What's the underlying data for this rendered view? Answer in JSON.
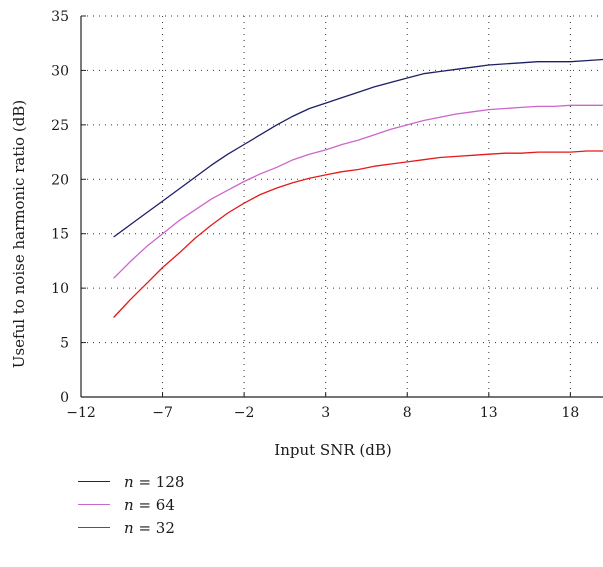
{
  "chart_data": {
    "type": "line",
    "xlabel": "Input SNR (dB)",
    "ylabel": "Useful to noise harmonic ratio (dB)",
    "xlim": [
      -12,
      20
    ],
    "ylim": [
      0,
      35
    ],
    "xticks": [
      -12,
      -7,
      -2,
      3,
      8,
      13,
      18
    ],
    "yticks": [
      0,
      5,
      10,
      15,
      20,
      25,
      30,
      35
    ],
    "xtick_labels": [
      "−12",
      "−7",
      "−2",
      "3",
      "8",
      "13",
      "18"
    ],
    "ytick_labels": [
      "0",
      "5",
      "10",
      "15",
      "20",
      "25",
      "30",
      "35"
    ],
    "grid": true,
    "legend_position": "below",
    "series": [
      {
        "name": "n = 128",
        "var": "n",
        "value_text": "= 128",
        "color": "#1f1f66",
        "x": [
          -10,
          -9,
          -8,
          -7,
          -6,
          -5,
          -4,
          -3,
          -2,
          -1,
          0,
          1,
          2,
          3,
          4,
          5,
          6,
          7,
          8,
          9,
          10,
          11,
          12,
          13,
          14,
          15,
          16,
          17,
          18,
          19,
          20
        ],
        "y": [
          14.7,
          15.8,
          16.9,
          18.0,
          19.1,
          20.2,
          21.3,
          22.3,
          23.2,
          24.1,
          25.0,
          25.8,
          26.5,
          27.0,
          27.5,
          28.0,
          28.5,
          28.9,
          29.3,
          29.7,
          29.9,
          30.1,
          30.3,
          30.5,
          30.6,
          30.7,
          30.8,
          30.8,
          30.8,
          30.9,
          31.0
        ]
      },
      {
        "name": "n = 64",
        "var": "n",
        "value_text": "= 64",
        "color": "#cc66cc",
        "x": [
          -10,
          -9,
          -8,
          -7,
          -6,
          -5,
          -4,
          -3,
          -2,
          -1,
          0,
          1,
          2,
          3,
          4,
          5,
          6,
          7,
          8,
          9,
          10,
          11,
          12,
          13,
          14,
          15,
          16,
          17,
          18,
          19,
          20
        ],
        "y": [
          10.9,
          12.4,
          13.8,
          15.0,
          16.2,
          17.2,
          18.2,
          19.0,
          19.8,
          20.5,
          21.1,
          21.8,
          22.3,
          22.7,
          23.2,
          23.6,
          24.1,
          24.6,
          25.0,
          25.4,
          25.7,
          26.0,
          26.2,
          26.4,
          26.5,
          26.6,
          26.7,
          26.7,
          26.8,
          26.8,
          26.8
        ]
      },
      {
        "name": "n = 32",
        "var": "n",
        "value_text": "= 32",
        "color": "#e61919",
        "x": [
          -10,
          -9,
          -8,
          -7,
          -6,
          -5,
          -4,
          -3,
          -2,
          -1,
          0,
          1,
          2,
          3,
          4,
          5,
          6,
          7,
          8,
          9,
          10,
          11,
          12,
          13,
          14,
          15,
          16,
          17,
          18,
          19,
          20
        ],
        "y": [
          7.3,
          8.9,
          10.4,
          11.9,
          13.2,
          14.6,
          15.8,
          16.9,
          17.8,
          18.6,
          19.2,
          19.7,
          20.1,
          20.4,
          20.7,
          20.9,
          21.2,
          21.4,
          21.6,
          21.8,
          22.0,
          22.1,
          22.2,
          22.3,
          22.4,
          22.4,
          22.5,
          22.5,
          22.5,
          22.6,
          22.6
        ]
      }
    ]
  }
}
